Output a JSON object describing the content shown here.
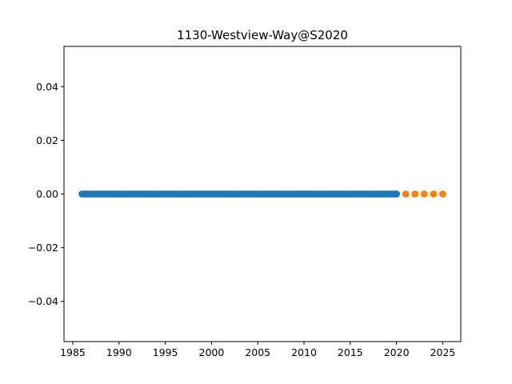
{
  "chart_data": {
    "type": "scatter",
    "title": "1130-Westview-Way@S2020",
    "xlabel": "",
    "ylabel": "",
    "xlim": [
      1984.05,
      1026.95
    ],
    "ylim": [
      -0.055,
      0.055
    ],
    "x_ticks": [
      1985,
      1990,
      1995,
      2000,
      2005,
      2010,
      2015,
      2020,
      2025
    ],
    "x_tick_labels": [
      "1985",
      "1990",
      "1995",
      "2000",
      "2005",
      "2010",
      "2015",
      "2020",
      "2025"
    ],
    "y_ticks": [
      -0.04,
      -0.02,
      0.0,
      0.02,
      0.04
    ],
    "y_tick_labels": [
      "−0.04",
      "−0.02",
      "0.00",
      "0.02",
      "0.04"
    ],
    "grid": false,
    "series": [
      {
        "color": "#1f77b4",
        "x_range": [
          1986,
          2020
        ],
        "points_per_year": 4,
        "y": 0.0
      },
      {
        "color": "#ff7f0e",
        "x": [
          2021,
          2022,
          2023,
          2024,
          2025
        ],
        "y": [
          0.0,
          0.0,
          0.0,
          0.0,
          0.0
        ]
      }
    ]
  }
}
